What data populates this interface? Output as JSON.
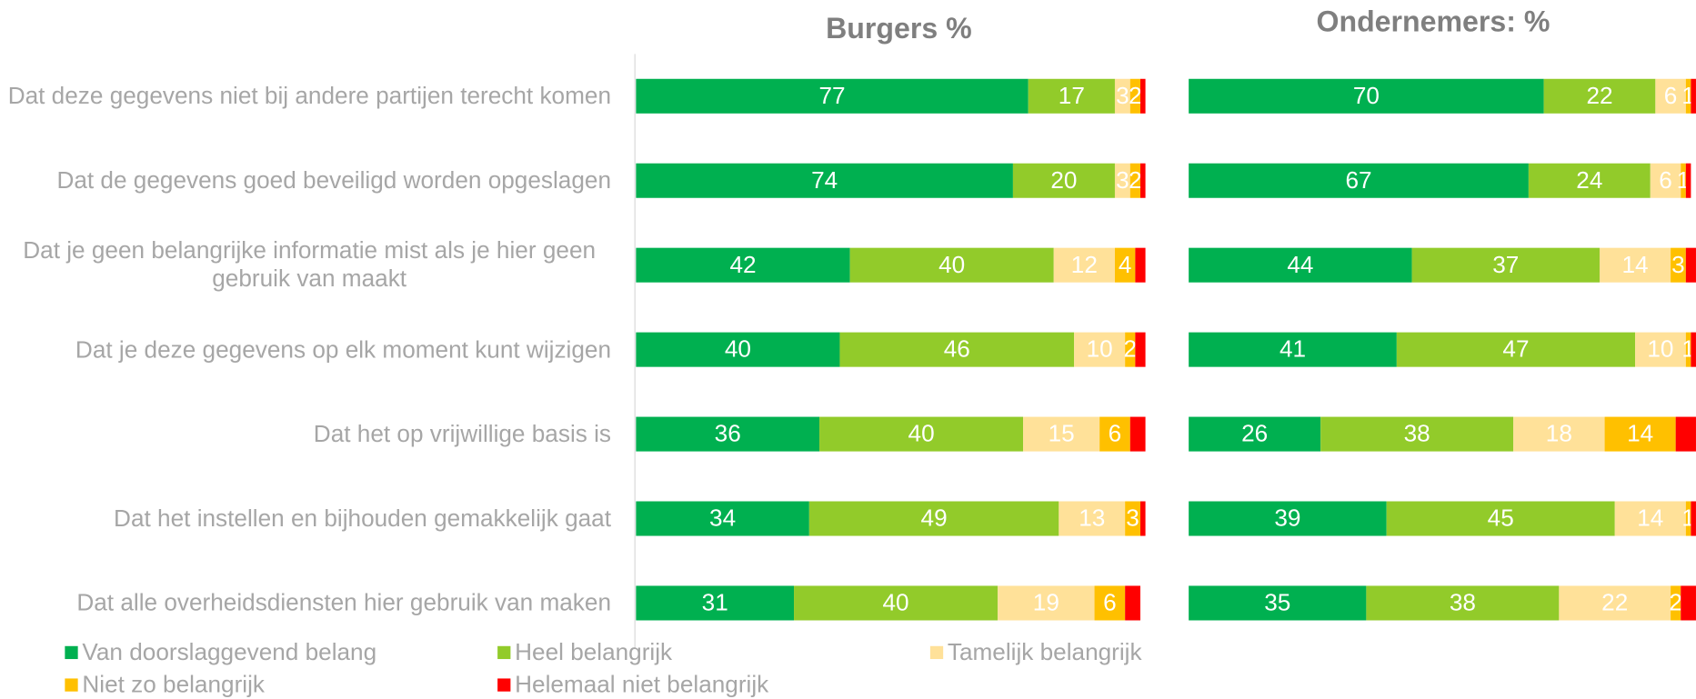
{
  "chart_data": [
    {
      "type": "bar",
      "orientation": "horizontal",
      "stacked": true,
      "title": "Burgers %",
      "categories": [
        "Dat deze gegevens niet bij andere partijen terecht komen",
        "Dat de gegevens goed beveiligd worden opgeslagen",
        "Dat je geen belangrijke informatie mist als je hier geen gebruik van maakt",
        "Dat je deze gegevens op elk moment kunt wijzigen",
        "Dat het op vrijwillige basis is",
        "Dat het instellen en bijhouden gemakkelijk gaat",
        "Dat alle overheidsdiensten hier gebruik van maken"
      ],
      "xlim": [
        0,
        100
      ],
      "series": [
        {
          "name": "Van doorslaggevend belang",
          "color": "#00b050",
          "values": [
            77,
            74,
            42,
            40,
            36,
            34,
            31
          ]
        },
        {
          "name": "Heel belangrijk",
          "color": "#92cb2a",
          "values": [
            17,
            20,
            40,
            46,
            40,
            49,
            40
          ]
        },
        {
          "name": "Tamelijk belangrijk",
          "color": "#ffe199",
          "values": [
            3,
            3,
            12,
            10,
            15,
            13,
            19
          ]
        },
        {
          "name": "Niet zo belangrijk",
          "color": "#ffc000",
          "values": [
            2,
            2,
            4,
            2,
            6,
            3,
            6
          ]
        },
        {
          "name": "Helemaal niet belangrijk",
          "color": "#ff0000",
          "values": [
            1,
            1,
            2,
            2,
            3,
            1,
            3
          ],
          "labels": false
        }
      ]
    },
    {
      "type": "bar",
      "orientation": "horizontal",
      "stacked": true,
      "title": "Ondernemers: %",
      "xlim": [
        0,
        100
      ],
      "series": [
        {
          "values": [
            70,
            67,
            44,
            41,
            26,
            39,
            35
          ]
        },
        {
          "values": [
            22,
            24,
            37,
            47,
            38,
            45,
            38
          ]
        },
        {
          "values": [
            6,
            6,
            14,
            10,
            18,
            14,
            22
          ]
        },
        {
          "values": [
            1,
            1,
            3,
            1,
            14,
            1,
            2
          ]
        },
        {
          "values": [
            1,
            1,
            2,
            1,
            4,
            1,
            3
          ],
          "labels": false
        }
      ]
    }
  ]
}
